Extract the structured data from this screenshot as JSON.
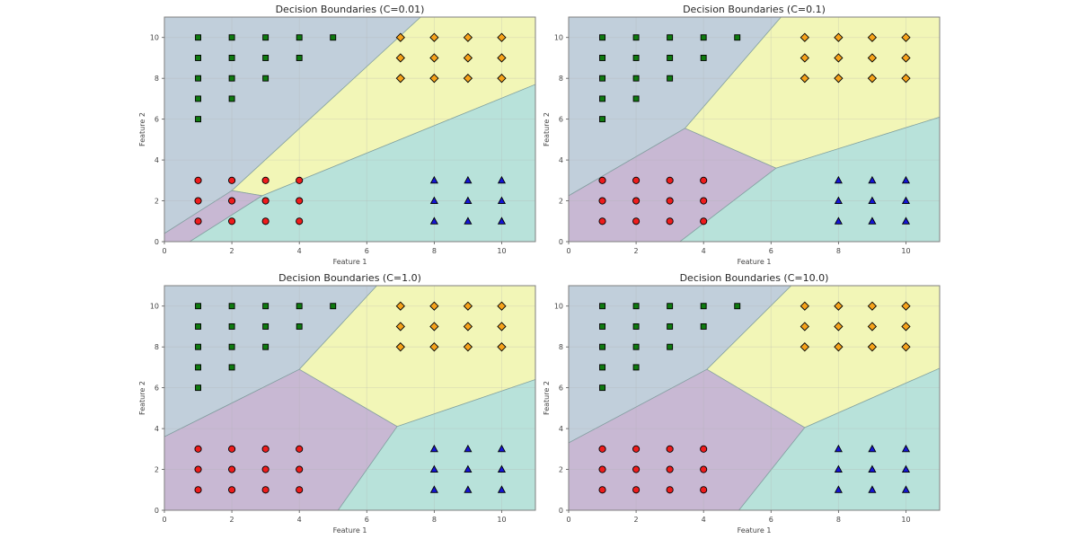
{
  "figure": {
    "class_colors": {
      "region_blue": "#c1cfdb",
      "region_purple": "#c8b8d3",
      "region_teal": "#b8e2da",
      "region_yellow": "#f2f6b7"
    }
  },
  "chart_data": [
    {
      "type": "scatter",
      "title": "Decision Boundaries (C=0.01)",
      "xlabel": "Feature 1",
      "ylabel": "Feature 2",
      "xlim": [
        0,
        11
      ],
      "ylim": [
        0,
        11
      ],
      "xticks": [
        "0",
        "2",
        "4",
        "6",
        "8",
        "10"
      ],
      "yticks": [
        "0",
        "2",
        "4",
        "6",
        "8",
        "10"
      ],
      "grid": true,
      "regions": [
        {
          "class": "green",
          "color": "#c1cfdb",
          "polygon": [
            [
              0,
              0.4
            ],
            [
              2,
              2.5
            ],
            [
              7.6,
              11
            ],
            [
              0,
              11
            ]
          ]
        },
        {
          "class": "orange",
          "color": "#f2f6b7",
          "polygon": [
            [
              2,
              2.5
            ],
            [
              2.9,
              2.25
            ],
            [
              11,
              7.7
            ],
            [
              11,
              11
            ],
            [
              7.6,
              11
            ]
          ]
        },
        {
          "class": "red",
          "color": "#c8b8d3",
          "polygon": [
            [
              0,
              0
            ],
            [
              0.75,
              0
            ],
            [
              2.9,
              2.25
            ],
            [
              2,
              2.5
            ],
            [
              0,
              0.4
            ]
          ]
        },
        {
          "class": "blue",
          "color": "#b8e2da",
          "polygon": [
            [
              0.75,
              0
            ],
            [
              11,
              0
            ],
            [
              11,
              7.7
            ],
            [
              2.9,
              2.25
            ]
          ]
        }
      ]
    },
    {
      "type": "scatter",
      "title": "Decision Boundaries (C=0.1)",
      "xlabel": "Feature 1",
      "ylabel": "Feature 2",
      "xlim": [
        0,
        11
      ],
      "ylim": [
        0,
        11
      ],
      "xticks": [
        "0",
        "2",
        "4",
        "6",
        "8",
        "10"
      ],
      "yticks": [
        "0",
        "2",
        "4",
        "6",
        "8",
        "10"
      ],
      "grid": true,
      "regions": [
        {
          "class": "green",
          "color": "#c1cfdb",
          "polygon": [
            [
              0,
              2.25
            ],
            [
              3.45,
              5.55
            ],
            [
              6.3,
              11
            ],
            [
              0,
              11
            ]
          ]
        },
        {
          "class": "orange",
          "color": "#f2f6b7",
          "polygon": [
            [
              3.45,
              5.55
            ],
            [
              6.15,
              3.6
            ],
            [
              11,
              6.1
            ],
            [
              11,
              11
            ],
            [
              6.3,
              11
            ]
          ]
        },
        {
          "class": "red",
          "color": "#c8b8d3",
          "polygon": [
            [
              0,
              0
            ],
            [
              3.3,
              0
            ],
            [
              6.15,
              3.6
            ],
            [
              3.45,
              5.55
            ],
            [
              0,
              2.25
            ]
          ]
        },
        {
          "class": "blue",
          "color": "#b8e2da",
          "polygon": [
            [
              3.3,
              0
            ],
            [
              11,
              0
            ],
            [
              11,
              6.1
            ],
            [
              6.15,
              3.6
            ]
          ]
        }
      ]
    },
    {
      "type": "scatter",
      "title": "Decision Boundaries (C=1.0)",
      "xlabel": "Feature 1",
      "ylabel": "Feature 2",
      "xlim": [
        0,
        11
      ],
      "ylim": [
        0,
        11
      ],
      "xticks": [
        "0",
        "2",
        "4",
        "6",
        "8",
        "10"
      ],
      "yticks": [
        "0",
        "2",
        "4",
        "6",
        "8",
        "10"
      ],
      "grid": true,
      "regions": [
        {
          "class": "green",
          "color": "#c1cfdb",
          "polygon": [
            [
              0,
              3.6
            ],
            [
              4,
              6.9
            ],
            [
              6.3,
              11
            ],
            [
              0,
              11
            ]
          ]
        },
        {
          "class": "orange",
          "color": "#f2f6b7",
          "polygon": [
            [
              4,
              6.9
            ],
            [
              6.9,
              4.1
            ],
            [
              11,
              6.4
            ],
            [
              11,
              11
            ],
            [
              6.3,
              11
            ]
          ]
        },
        {
          "class": "red",
          "color": "#c8b8d3",
          "polygon": [
            [
              0,
              0
            ],
            [
              5.15,
              0
            ],
            [
              6.9,
              4.1
            ],
            [
              4,
              6.9
            ],
            [
              0,
              3.6
            ]
          ]
        },
        {
          "class": "blue",
          "color": "#b8e2da",
          "polygon": [
            [
              5.15,
              0
            ],
            [
              11,
              0
            ],
            [
              11,
              6.4
            ],
            [
              6.9,
              4.1
            ]
          ]
        }
      ]
    },
    {
      "type": "scatter",
      "title": "Decision Boundaries (C=10.0)",
      "xlabel": "Feature 1",
      "ylabel": "Feature 2",
      "xlim": [
        0,
        11
      ],
      "ylim": [
        0,
        11
      ],
      "xticks": [
        "0",
        "2",
        "4",
        "6",
        "8",
        "10"
      ],
      "yticks": [
        "0",
        "2",
        "4",
        "6",
        "8",
        "10"
      ],
      "grid": true,
      "regions": [
        {
          "class": "green",
          "color": "#c1cfdb",
          "polygon": [
            [
              0,
              3.3
            ],
            [
              4.1,
              6.9
            ],
            [
              6.6,
              11
            ],
            [
              0,
              11
            ]
          ]
        },
        {
          "class": "orange",
          "color": "#f2f6b7",
          "polygon": [
            [
              4.1,
              6.9
            ],
            [
              7,
              4.05
            ],
            [
              11,
              6.95
            ],
            [
              11,
              11
            ],
            [
              6.6,
              11
            ]
          ]
        },
        {
          "class": "red",
          "color": "#c8b8d3",
          "polygon": [
            [
              0,
              0
            ],
            [
              5.05,
              0
            ],
            [
              7,
              4.05
            ],
            [
              4.1,
              6.9
            ],
            [
              0,
              3.3
            ]
          ]
        },
        {
          "class": "blue",
          "color": "#b8e2da",
          "polygon": [
            [
              5.05,
              0
            ],
            [
              11,
              0
            ],
            [
              11,
              6.95
            ],
            [
              7,
              4.05
            ]
          ]
        }
      ]
    }
  ],
  "points": {
    "classes": [
      {
        "name": "green",
        "marker": "square",
        "color": "#0f7a0f",
        "x": [
          1,
          2,
          3,
          4,
          5,
          1,
          2,
          3,
          4,
          1,
          2,
          3,
          1,
          2,
          1
        ],
        "y": [
          10,
          10,
          10,
          10,
          10,
          9,
          9,
          9,
          9,
          8,
          8,
          8,
          7,
          7,
          6
        ]
      },
      {
        "name": "orange",
        "marker": "diamond",
        "color": "#f5a21b",
        "x": [
          7,
          8,
          9,
          10,
          7,
          8,
          9,
          10,
          7,
          8,
          9,
          10
        ],
        "y": [
          10,
          10,
          10,
          10,
          9,
          9,
          9,
          9,
          8,
          8,
          8,
          8
        ]
      },
      {
        "name": "red",
        "marker": "circle",
        "color": "#ee1c1c",
        "x": [
          1,
          2,
          3,
          4,
          1,
          2,
          3,
          4,
          1,
          2,
          3,
          4
        ],
        "y": [
          3,
          3,
          3,
          3,
          2,
          2,
          2,
          2,
          1,
          1,
          1,
          1
        ]
      },
      {
        "name": "blue",
        "marker": "triangle",
        "color": "#1515d6",
        "x": [
          8,
          9,
          10,
          8,
          9,
          10,
          8,
          9,
          10
        ],
        "y": [
          3,
          3,
          3,
          2,
          2,
          2,
          1,
          1,
          1
        ]
      }
    ]
  }
}
